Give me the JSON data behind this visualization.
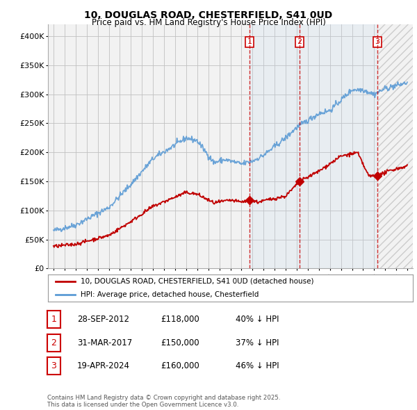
{
  "title": "10, DOUGLAS ROAD, CHESTERFIELD, S41 0UD",
  "subtitle": "Price paid vs. HM Land Registry's House Price Index (HPI)",
  "ylim": [
    0,
    420000
  ],
  "yticks": [
    0,
    50000,
    100000,
    150000,
    200000,
    250000,
    300000,
    350000,
    400000
  ],
  "ytick_labels": [
    "£0",
    "£50K",
    "£100K",
    "£150K",
    "£200K",
    "£250K",
    "£300K",
    "£350K",
    "£400K"
  ],
  "hpi_color": "#5B9BD5",
  "price_color": "#C00000",
  "grid_color": "#C0C0C0",
  "bg_color": "#ffffff",
  "plot_bg_color": "#f2f2f2",
  "purchases": [
    {
      "date_num": 2012.74,
      "price": 118000,
      "label": "1"
    },
    {
      "date_num": 2017.25,
      "price": 150000,
      "label": "2"
    },
    {
      "date_num": 2024.3,
      "price": 160000,
      "label": "3"
    }
  ],
  "legend_line1": "10, DOUGLAS ROAD, CHESTERFIELD, S41 0UD (detached house)",
  "legend_line2": "HPI: Average price, detached house, Chesterfield",
  "footer": "Contains HM Land Registry data © Crown copyright and database right 2025.\nThis data is licensed under the Open Government Licence v3.0.",
  "table_rows": [
    {
      "num": "1",
      "date": "28-SEP-2012",
      "price": "£118,000",
      "pct": "40% ↓ HPI"
    },
    {
      "num": "2",
      "date": "31-MAR-2017",
      "price": "£150,000",
      "pct": "37% ↓ HPI"
    },
    {
      "num": "3",
      "date": "19-APR-2024",
      "price": "£160,000",
      "pct": "46% ↓ HPI"
    }
  ]
}
